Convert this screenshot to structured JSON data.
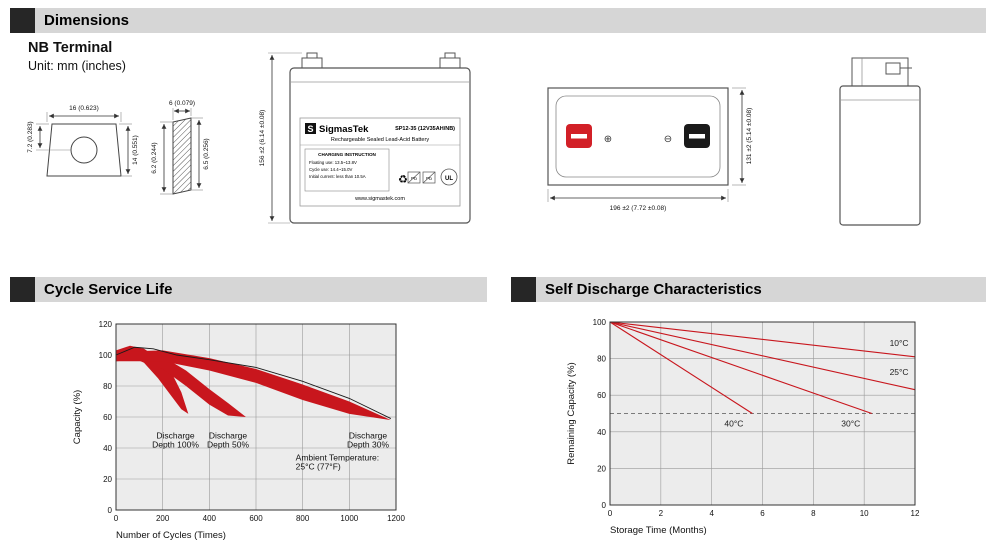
{
  "colors": {
    "header_bar": "#d6d6d6",
    "header_square": "#262626",
    "chart_red": "#c8161d",
    "terminal_red": "#d22027",
    "terminal_black": "#1a1a1a"
  },
  "sections": {
    "dimensions": {
      "title": "Dimensions"
    },
    "cycle_service_life": {
      "title": "Cycle Service Life"
    },
    "self_discharge": {
      "title": "Self Discharge Characteristics"
    }
  },
  "terminal": {
    "heading": "NB Terminal",
    "unit_note": "Unit: mm (inches)",
    "top_view": {
      "width": "16 (0.623)",
      "height_partial": "7.2 (0.283)",
      "height_full": "14 (0.551)"
    },
    "section_view": {
      "width": "6 (0.079)",
      "left": "6.2 (0.244)",
      "right": "6.5 (0.256)"
    }
  },
  "battery": {
    "front_view": {
      "logo_letter": "S",
      "brand": "SigmasTek",
      "model": "SP12-35 (12V35AH/NB)",
      "subtitle": "Rechargeable Sealed Lead-Acid Battery",
      "charging": {
        "title": "CHARGING INSTRUCTION",
        "lines": [
          "Floating use: 13.5~13.8V",
          "Cycle use: 14.4~15.0V",
          "Initial current: less than 10.5A"
        ]
      },
      "pb_label": "Pb",
      "ul_label": "UL",
      "recycle_glyph": "♻",
      "website": "www.sigmastek.com",
      "height_dim": "156 ±2 (6.14 ±0.08)"
    },
    "top_view": {
      "width_dim": "196 ±2 (7.72 ±0.08)",
      "depth_dim": "131 ±2 (5.14 ±0.08)",
      "plus_symbol": "⊕",
      "minus_symbol": "⊖"
    }
  },
  "chart_data": [
    {
      "type": "area",
      "title": "Cycle Service Life",
      "xlabel": "Number of Cycles (Times)",
      "ylabel": "Capacity (%)",
      "xlim": [
        0,
        1200
      ],
      "ylim": [
        0,
        120
      ],
      "xticks": [
        0,
        200,
        400,
        600,
        800,
        1000,
        1200
      ],
      "yticks": [
        0,
        20,
        40,
        60,
        80,
        100,
        120
      ],
      "grid": true,
      "legend": "none",
      "bands": [
        {
          "name": "Discharge Depth 100%",
          "upper": [
            [
              0,
              103
            ],
            [
              60,
              106
            ],
            [
              120,
              104
            ],
            [
              180,
              98
            ],
            [
              240,
              88
            ],
            [
              280,
              76
            ],
            [
              310,
              62
            ]
          ],
          "lower": [
            [
              0,
              96
            ],
            [
              60,
              99
            ],
            [
              120,
              95
            ],
            [
              180,
              85
            ],
            [
              240,
              73
            ],
            [
              280,
              65
            ],
            [
              310,
              62
            ]
          ]
        },
        {
          "name": "Discharge Depth 50%",
          "upper": [
            [
              0,
              102
            ],
            [
              100,
              104
            ],
            [
              200,
              99
            ],
            [
              300,
              90
            ],
            [
              400,
              78
            ],
            [
              480,
              69
            ],
            [
              557,
              60
            ]
          ],
          "lower": [
            [
              0,
              96
            ],
            [
              100,
              97
            ],
            [
              200,
              91
            ],
            [
              300,
              80
            ],
            [
              400,
              68
            ],
            [
              480,
              61
            ],
            [
              557,
              60
            ]
          ]
        },
        {
          "name": "Discharge Depth 30%",
          "upper": [
            [
              0,
              102
            ],
            [
              200,
              103
            ],
            [
              400,
              98
            ],
            [
              600,
              91
            ],
            [
              800,
              81
            ],
            [
              1000,
              70
            ],
            [
              1178,
              58
            ]
          ],
          "lower": [
            [
              0,
              96
            ],
            [
              200,
              96
            ],
            [
              400,
              90
            ],
            [
              600,
              82
            ],
            [
              800,
              71
            ],
            [
              1000,
              62
            ],
            [
              1178,
              58
            ]
          ]
        }
      ],
      "envelope": [
        [
          0,
          100
        ],
        [
          80,
          105
        ],
        [
          160,
          104
        ],
        [
          260,
          100
        ],
        [
          400,
          97
        ],
        [
          600,
          92
        ],
        [
          800,
          83
        ],
        [
          1000,
          72
        ],
        [
          1178,
          59
        ]
      ],
      "annotations": [
        {
          "text_lines": [
            "Discharge",
            "Depth 100%"
          ],
          "x": 255,
          "y": 46,
          "align": "middle"
        },
        {
          "text_lines": [
            "Discharge",
            "Depth 50%"
          ],
          "x": 480,
          "y": 46,
          "align": "middle"
        },
        {
          "text_lines": [
            "Discharge",
            "Depth 30%"
          ],
          "x": 1080,
          "y": 46,
          "align": "middle"
        },
        {
          "text_lines": [
            "Ambient Temperature:",
            "25°C (77°F)"
          ],
          "x": 770,
          "y": 32,
          "align": "start"
        }
      ],
      "colors": {
        "band": "#c8161d",
        "envelope": "#1a1a1a"
      }
    },
    {
      "type": "line",
      "title": "Self Discharge Characteristics",
      "xlabel": "Storage Time (Months)",
      "ylabel": "Remaining Capacity (%)",
      "xlim": [
        0,
        12
      ],
      "ylim": [
        0,
        100
      ],
      "xticks": [
        0,
        2,
        4,
        6,
        8,
        10,
        12
      ],
      "yticks": [
        0,
        20,
        40,
        60,
        80,
        100
      ],
      "grid": true,
      "legend": "inline-labels",
      "lines": [
        {
          "name": "10°C",
          "points": [
            [
              0,
              100
            ],
            [
              12,
              81
            ]
          ],
          "label_x": 11.0,
          "label_y": 87
        },
        {
          "name": "25°C",
          "points": [
            [
              0,
              100
            ],
            [
              12,
              63
            ]
          ],
          "label_x": 11.0,
          "label_y": 71
        },
        {
          "name": "30°C",
          "points": [
            [
              0,
              100
            ],
            [
              10.3,
              50
            ]
          ],
          "label_x": 9.1,
          "label_y": 43
        },
        {
          "name": "40°C",
          "points": [
            [
              0,
              100
            ],
            [
              5.6,
              50
            ]
          ],
          "label_x": 4.5,
          "label_y": 43
        }
      ],
      "dashed_line_y": 50,
      "colors": {
        "line": "#c8161d",
        "dashed": "#555555"
      }
    }
  ]
}
